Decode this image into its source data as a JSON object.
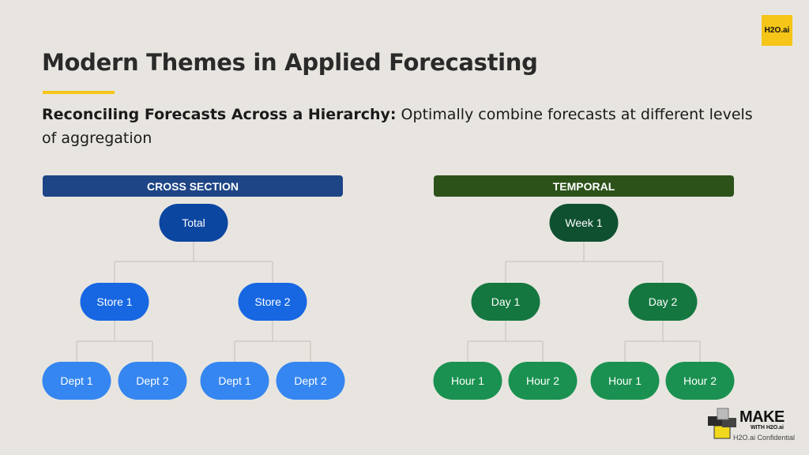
{
  "title": "Modern Themes in Applied Forecasting",
  "subtitle": {
    "bold": "Reconciling Forecasts Across a Hierarchy:",
    "rest": " Optimally combine forecasts at different levels of aggregation"
  },
  "logo": "H2O.ai",
  "footer": {
    "make": "MAKE",
    "with": "WITH H2O.ai",
    "confidential": "H2O.ai Confidential"
  },
  "cross_section": {
    "header": "CROSS SECTION",
    "root": "Total",
    "level1": [
      "Store 1",
      "Store 2"
    ],
    "level2": [
      "Dept 1",
      "Dept 2",
      "Dept 1",
      "Dept 2"
    ]
  },
  "temporal": {
    "header": "TEMPORAL",
    "root": "Week 1",
    "level1": [
      "Day 1",
      "Day 2"
    ],
    "level2": [
      "Hour 1",
      "Hour 2",
      "Hour 1",
      "Hour 2"
    ]
  },
  "colors": {
    "cs_header": "#1e4585",
    "cs_root": "#0b46a0",
    "cs_l1": "#1767e3",
    "cs_l2": "#3586f0",
    "t_header": "#2c521a",
    "t_root": "#0f5030",
    "t_l1": "#14773f",
    "t_l2": "#1a9150",
    "accent": "#f5c518"
  }
}
